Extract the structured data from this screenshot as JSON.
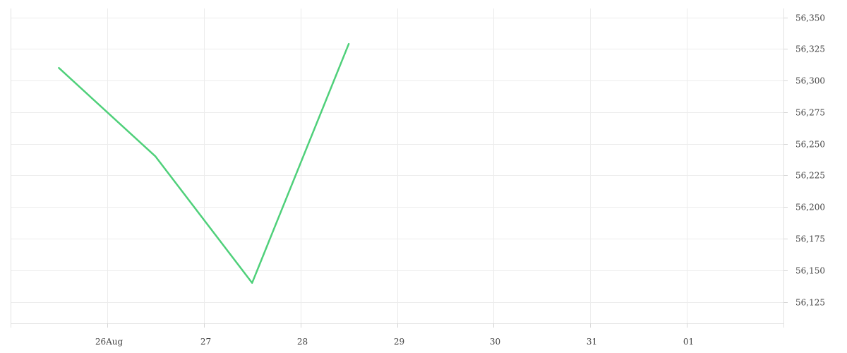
{
  "chart_data": {
    "type": "line",
    "title": "",
    "xlabel": "",
    "ylabel": "",
    "x_ticks": [
      {
        "date": "2024-08-26",
        "label": "26Aug"
      },
      {
        "date": "2024-08-27",
        "label": "27"
      },
      {
        "date": "2024-08-28",
        "label": "28"
      },
      {
        "date": "2024-08-29",
        "label": "29"
      },
      {
        "date": "2024-08-30",
        "label": "30"
      },
      {
        "date": "2024-08-31",
        "label": "31"
      },
      {
        "date": "2024-09-01",
        "label": "01"
      }
    ],
    "y_ticks": [
      {
        "value": 56125,
        "label": "56,125"
      },
      {
        "value": 56150,
        "label": "56,150"
      },
      {
        "value": 56175,
        "label": "56,175"
      },
      {
        "value": 56200,
        "label": "56,200"
      },
      {
        "value": 56225,
        "label": "56,225"
      },
      {
        "value": 56250,
        "label": "56,250"
      },
      {
        "value": 56275,
        "label": "56,275"
      },
      {
        "value": 56300,
        "label": "56,300"
      },
      {
        "value": 56325,
        "label": "56,325"
      },
      {
        "value": 56350,
        "label": "56,350"
      }
    ],
    "xlim": [
      "2024-08-25",
      "2024-09-02"
    ],
    "ylim": [
      56108,
      56357
    ],
    "y_axis_position": "right",
    "grid": true,
    "legend": "none",
    "series": [
      {
        "color": "#4fd07a",
        "points": [
          {
            "x": "2024-08-25T12:00",
            "y": 56310
          },
          {
            "x": "2024-08-26T12:00",
            "y": 56240
          },
          {
            "x": "2024-08-27T12:00",
            "y": 56140
          },
          {
            "x": "2024-08-28T12:00",
            "y": 56329
          }
        ]
      }
    ]
  }
}
